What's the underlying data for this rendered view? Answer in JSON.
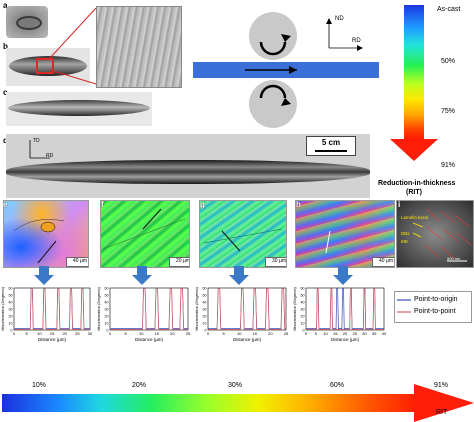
{
  "panels": {
    "a": "a",
    "b": "b",
    "c": "c",
    "d": "d",
    "e": "e",
    "f": "f",
    "g": "g",
    "h": "h",
    "i": "i"
  },
  "rolling": {
    "nd": "ND",
    "rd": "RD"
  },
  "sample_d": {
    "td": "TD",
    "rd": "RD",
    "scale": "5 cm"
  },
  "rit_bar": {
    "as_cast": "As-cast",
    "pct_50": "50%",
    "pct_75": "75%",
    "pct_91": "91%",
    "label_line1": "Reduction-in-thickness",
    "label_line2": "(RIT)"
  },
  "ebsd": {
    "e_scale": "40 µm",
    "f_scale": "20 µm",
    "g_scale": "30 µm",
    "h_scale": "40 µm",
    "i_scale": "500 nm",
    "i_annot_lamella": "Lamella bond",
    "i_annot_dbs": "DBs",
    "i_annot_mb": "MB"
  },
  "plots": {
    "ylabel": "Misorientation (Degrees)",
    "xlabel": "Distance (µm)",
    "e": {
      "xticks": [
        "0",
        "5",
        "10",
        "15",
        "20",
        "25",
        "30"
      ],
      "yticks": [
        "0",
        "10",
        "20",
        "30",
        "40",
        "50",
        "60"
      ],
      "red_peaks": [
        7,
        12,
        17.5,
        22.5,
        27
      ],
      "blue_peaks": [
        7,
        12,
        17.5,
        22.5,
        27
      ]
    },
    "f": {
      "xticks": [
        "0",
        "5",
        "10",
        "15",
        "20",
        "25"
      ],
      "yticks": [
        "0",
        "10",
        "20",
        "30",
        "40",
        "50",
        "60"
      ],
      "red_peaks": [
        11,
        15,
        19.5,
        23
      ],
      "blue_peaks": [
        11,
        15,
        19.5,
        23
      ]
    },
    "g": {
      "xticks": [
        "0",
        "5",
        "10",
        "15",
        "20",
        "25"
      ],
      "yticks": [
        "0",
        "10",
        "20",
        "30",
        "40",
        "50",
        "60"
      ],
      "red_peaks": [
        3.5,
        11,
        15,
        19,
        24
      ],
      "blue_peaks": [
        3.5,
        11,
        15,
        19,
        24
      ]
    },
    "h": {
      "xticks": [
        "0",
        "5",
        "10",
        "15",
        "20",
        "25",
        "30",
        "35",
        "40"
      ],
      "yticks": [
        "0",
        "10",
        "20",
        "30",
        "40",
        "50",
        "60"
      ],
      "red_peaks": [
        6,
        13,
        23,
        30,
        35
      ],
      "blue_peaks": [
        6,
        13,
        16,
        19,
        23,
        30,
        35
      ]
    }
  },
  "legend": {
    "blue": "Point-to-origin",
    "red": "Point-to-point"
  },
  "bottom_arrow": {
    "ticks": [
      "10%",
      "20%",
      "30%",
      "60%",
      "91%"
    ],
    "label": "RIT"
  },
  "colors": {
    "blue_series": "#3b4cc0",
    "red_series": "#e06060",
    "arrow_blue": "#3b78c8",
    "steel_blue_bar": "#3a6fd8",
    "roll_gray": "#c9c9c9"
  }
}
